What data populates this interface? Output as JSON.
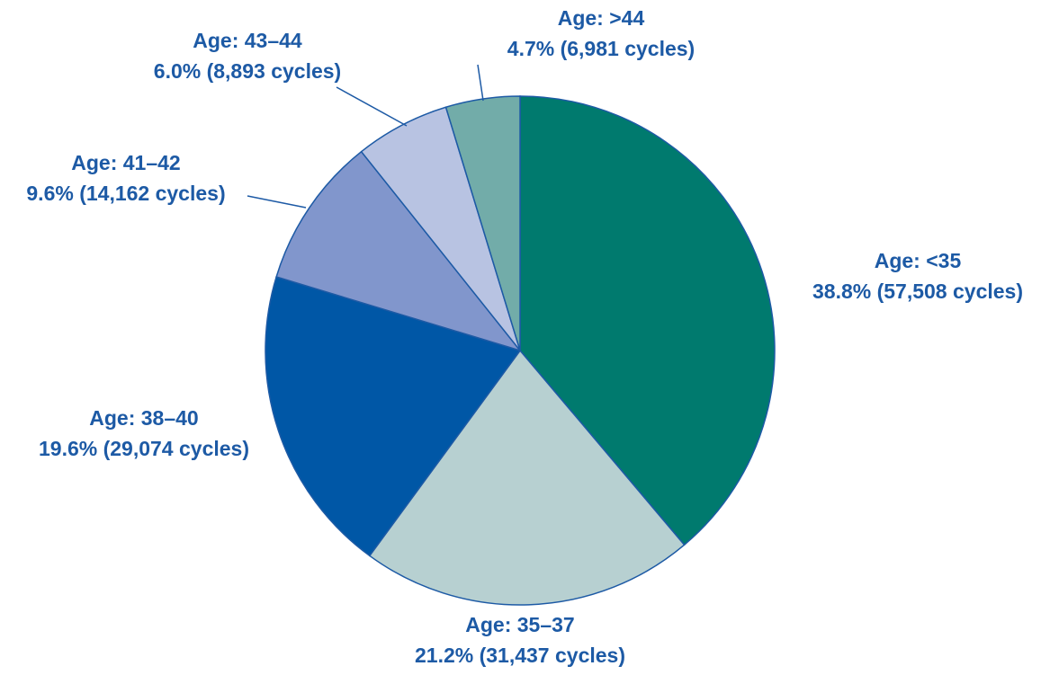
{
  "chart_data": {
    "type": "pie",
    "categories": [
      "Age: <35",
      "Age: 35–37",
      "Age: 38–40",
      "Age: 41–42",
      "Age: 43–44",
      "Age: >44"
    ],
    "values": [
      38.8,
      21.2,
      19.6,
      9.6,
      6.0,
      4.7
    ],
    "value_labels": [
      "38.8% (57,508 cycles)",
      "21.2% (31,437 cycles)",
      "19.6% (29,074 cycles)",
      "9.6% (14,162 cycles)",
      "6.0% (8,893 cycles)",
      "4.7% (6,981 cycles)"
    ],
    "colors": [
      "#007a6e",
      "#b7d0d1",
      "#0057a6",
      "#8196cc",
      "#b8c3e2",
      "#72aca9"
    ]
  }
}
